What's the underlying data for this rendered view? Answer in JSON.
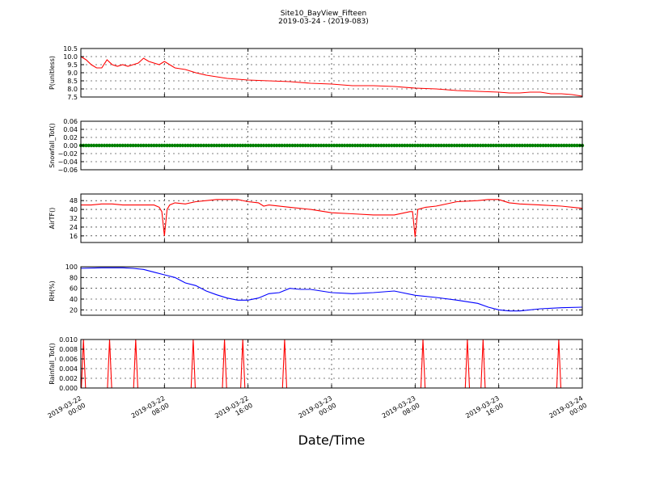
{
  "figure": {
    "title_line1": "Site10_BayView_Fifteen",
    "title_line2": "2019-03-24 - (2019-083)",
    "xlabel": "Date/Time"
  },
  "x_axis": {
    "range": [
      "2019-03-22 00:00",
      "2019-03-24 00:00"
    ],
    "ticks": [
      {
        "line1": "2019-03-22",
        "line2": "00:00",
        "t": "2019-03-22 00:00"
      },
      {
        "line1": "2019-03-22",
        "line2": "08:00",
        "t": "2019-03-22 08:00"
      },
      {
        "line1": "2019-03-22",
        "line2": "16:00",
        "t": "2019-03-22 16:00"
      },
      {
        "line1": "2019-03-23",
        "line2": "00:00",
        "t": "2019-03-23 00:00"
      },
      {
        "line1": "2019-03-23",
        "line2": "08:00",
        "t": "2019-03-23 08:00"
      },
      {
        "line1": "2019-03-23",
        "line2": "16:00",
        "t": "2019-03-23 16:00"
      },
      {
        "line1": "2019-03-24",
        "line2": "00:00",
        "t": "2019-03-24 00:00"
      }
    ]
  },
  "chart_data": [
    {
      "type": "line",
      "id": "p",
      "ylabel": "P(unitless)",
      "ylim": [
        7.5,
        10.5
      ],
      "yticks": [
        "10.5",
        "10.0",
        "9.5",
        "9.0",
        "8.5",
        "8.0",
        "7.5"
      ],
      "ytick_values": [
        10.5,
        10.0,
        9.5,
        9.0,
        8.5,
        8.0,
        7.5
      ],
      "grid": true,
      "color": "#ff0000",
      "x": [
        "2019-03-22 00:00",
        "2019-03-22 00:30",
        "2019-03-22 01:00",
        "2019-03-22 01:30",
        "2019-03-22 02:00",
        "2019-03-22 02:30",
        "2019-03-22 03:00",
        "2019-03-22 03:30",
        "2019-03-22 04:00",
        "2019-03-22 04:30",
        "2019-03-22 05:00",
        "2019-03-22 05:30",
        "2019-03-22 06:00",
        "2019-03-22 06:30",
        "2019-03-22 07:00",
        "2019-03-22 07:30",
        "2019-03-22 08:00",
        "2019-03-22 08:30",
        "2019-03-22 09:00",
        "2019-03-22 10:00",
        "2019-03-22 11:00",
        "2019-03-22 12:00",
        "2019-03-22 13:00",
        "2019-03-22 14:00",
        "2019-03-22 15:00",
        "2019-03-22 16:00",
        "2019-03-22 18:00",
        "2019-03-22 20:00",
        "2019-03-22 22:00",
        "2019-03-23 00:00",
        "2019-03-23 01:00",
        "2019-03-23 02:00",
        "2019-03-23 04:00",
        "2019-03-23 06:00",
        "2019-03-23 08:00",
        "2019-03-23 10:00",
        "2019-03-23 12:00",
        "2019-03-23 14:00",
        "2019-03-23 16:00",
        "2019-03-23 17:00",
        "2019-03-23 18:00",
        "2019-03-23 19:00",
        "2019-03-23 20:00",
        "2019-03-23 21:00",
        "2019-03-23 22:00",
        "2019-03-23 23:00",
        "2019-03-24 00:00"
      ],
      "y": [
        10.0,
        9.8,
        9.5,
        9.3,
        9.3,
        9.8,
        9.5,
        9.4,
        9.5,
        9.4,
        9.5,
        9.6,
        9.9,
        9.7,
        9.6,
        9.5,
        9.7,
        9.5,
        9.3,
        9.2,
        9.0,
        8.85,
        8.75,
        8.65,
        8.6,
        8.55,
        8.5,
        8.45,
        8.35,
        8.3,
        8.25,
        8.2,
        8.2,
        8.15,
        8.05,
        8.0,
        7.9,
        7.85,
        7.8,
        7.75,
        7.75,
        7.8,
        7.8,
        7.7,
        7.7,
        7.65,
        7.55
      ]
    },
    {
      "type": "scatter",
      "id": "snow",
      "ylabel": "Snowfall_Tot()",
      "ylim": [
        -0.06,
        0.06
      ],
      "yticks": [
        "0.06",
        "0.04",
        "0.02",
        "0.00",
        "−0.02",
        "−0.04",
        "−0.06"
      ],
      "ytick_values": [
        0.06,
        0.04,
        0.02,
        0.0,
        -0.02,
        -0.04,
        -0.06
      ],
      "grid": true,
      "color": "#008000",
      "constant_value": 0.0,
      "x_range": [
        "2019-03-22 00:00",
        "2019-03-24 00:00"
      ]
    },
    {
      "type": "line",
      "id": "airtf",
      "ylabel": "AirTF()",
      "ylim": [
        10,
        54
      ],
      "yticks": [
        "48",
        "40",
        "32",
        "24",
        "16"
      ],
      "ytick_values": [
        48,
        40,
        32,
        24,
        16
      ],
      "grid": true,
      "color": "#ff0000",
      "x": [
        "2019-03-22 00:00",
        "2019-03-22 01:00",
        "2019-03-22 02:00",
        "2019-03-22 03:00",
        "2019-03-22 04:00",
        "2019-03-22 05:00",
        "2019-03-22 06:00",
        "2019-03-22 07:00",
        "2019-03-22 07:30",
        "2019-03-22 07:45",
        "2019-03-22 08:00",
        "2019-03-22 08:15",
        "2019-03-22 08:30",
        "2019-03-22 09:00",
        "2019-03-22 10:00",
        "2019-03-22 11:00",
        "2019-03-22 12:00",
        "2019-03-22 13:00",
        "2019-03-22 14:00",
        "2019-03-22 15:00",
        "2019-03-22 16:00",
        "2019-03-22 17:00",
        "2019-03-22 17:30",
        "2019-03-22 18:00",
        "2019-03-22 20:00",
        "2019-03-22 22:00",
        "2019-03-23 00:00",
        "2019-03-23 02:00",
        "2019-03-23 04:00",
        "2019-03-23 06:00",
        "2019-03-23 07:30",
        "2019-03-23 07:45",
        "2019-03-23 08:00",
        "2019-03-23 08:15",
        "2019-03-23 09:00",
        "2019-03-23 10:00",
        "2019-03-23 12:00",
        "2019-03-23 14:00",
        "2019-03-23 15:00",
        "2019-03-23 16:00",
        "2019-03-23 17:00",
        "2019-03-23 18:00",
        "2019-03-23 20:00",
        "2019-03-23 22:00",
        "2019-03-24 00:00"
      ],
      "y": [
        44,
        44,
        45,
        45,
        44,
        44,
        44,
        44,
        42,
        38,
        16,
        40,
        44,
        46,
        45,
        47,
        48,
        49,
        49,
        49,
        47,
        46,
        43,
        44,
        42,
        40,
        37,
        36,
        35,
        35,
        38,
        38,
        15,
        40,
        42,
        43,
        47,
        48,
        49,
        49,
        46,
        45,
        44,
        43,
        41
      ]
    },
    {
      "type": "line",
      "id": "rh",
      "ylabel": "RH(%)",
      "ylim": [
        10,
        100
      ],
      "yticks": [
        "100",
        "80",
        "60",
        "40",
        "20"
      ],
      "ytick_values": [
        100,
        80,
        60,
        40,
        20
      ],
      "grid": true,
      "color": "#0000ff",
      "x": [
        "2019-03-22 00:00",
        "2019-03-22 02:00",
        "2019-03-22 04:00",
        "2019-03-22 05:00",
        "2019-03-22 06:00",
        "2019-03-22 07:00",
        "2019-03-22 08:00",
        "2019-03-22 09:00",
        "2019-03-22 10:00",
        "2019-03-22 11:00",
        "2019-03-22 12:00",
        "2019-03-22 13:00",
        "2019-03-22 14:00",
        "2019-03-22 15:00",
        "2019-03-22 16:00",
        "2019-03-22 17:00",
        "2019-03-22 18:00",
        "2019-03-22 19:00",
        "2019-03-22 20:00",
        "2019-03-22 21:00",
        "2019-03-22 22:00",
        "2019-03-23 00:00",
        "2019-03-23 02:00",
        "2019-03-23 04:00",
        "2019-03-23 06:00",
        "2019-03-23 08:00",
        "2019-03-23 10:00",
        "2019-03-23 12:00",
        "2019-03-23 14:00",
        "2019-03-23 15:00",
        "2019-03-23 16:00",
        "2019-03-23 17:00",
        "2019-03-23 18:00",
        "2019-03-23 20:00",
        "2019-03-23 22:00",
        "2019-03-24 00:00"
      ],
      "y": [
        97,
        98,
        98,
        97,
        95,
        90,
        85,
        80,
        70,
        65,
        55,
        48,
        42,
        38,
        38,
        42,
        50,
        52,
        60,
        58,
        58,
        52,
        50,
        52,
        55,
        47,
        43,
        38,
        32,
        25,
        20,
        18,
        18,
        22,
        24,
        25
      ]
    },
    {
      "type": "line",
      "id": "rain",
      "ylabel": "Rainfall_Tot()",
      "ylim": [
        0,
        0.01
      ],
      "yticks": [
        "0.010",
        "0.008",
        "0.006",
        "0.004",
        "0.002",
        "0.000"
      ],
      "ytick_values": [
        0.01,
        0.008,
        0.006,
        0.004,
        0.002,
        0.0
      ],
      "grid": true,
      "color": "#ff0000",
      "baseline": 0.0,
      "spike_height": 0.01,
      "spike_halfwidth_minutes": 12,
      "spike_times": [
        "2019-03-22 00:15",
        "2019-03-22 02:45",
        "2019-03-22 05:15",
        "2019-03-22 10:45",
        "2019-03-22 13:45",
        "2019-03-22 15:30",
        "2019-03-22 19:30",
        "2019-03-23 08:45",
        "2019-03-23 13:00",
        "2019-03-23 14:30",
        "2019-03-23 21:45"
      ]
    }
  ]
}
